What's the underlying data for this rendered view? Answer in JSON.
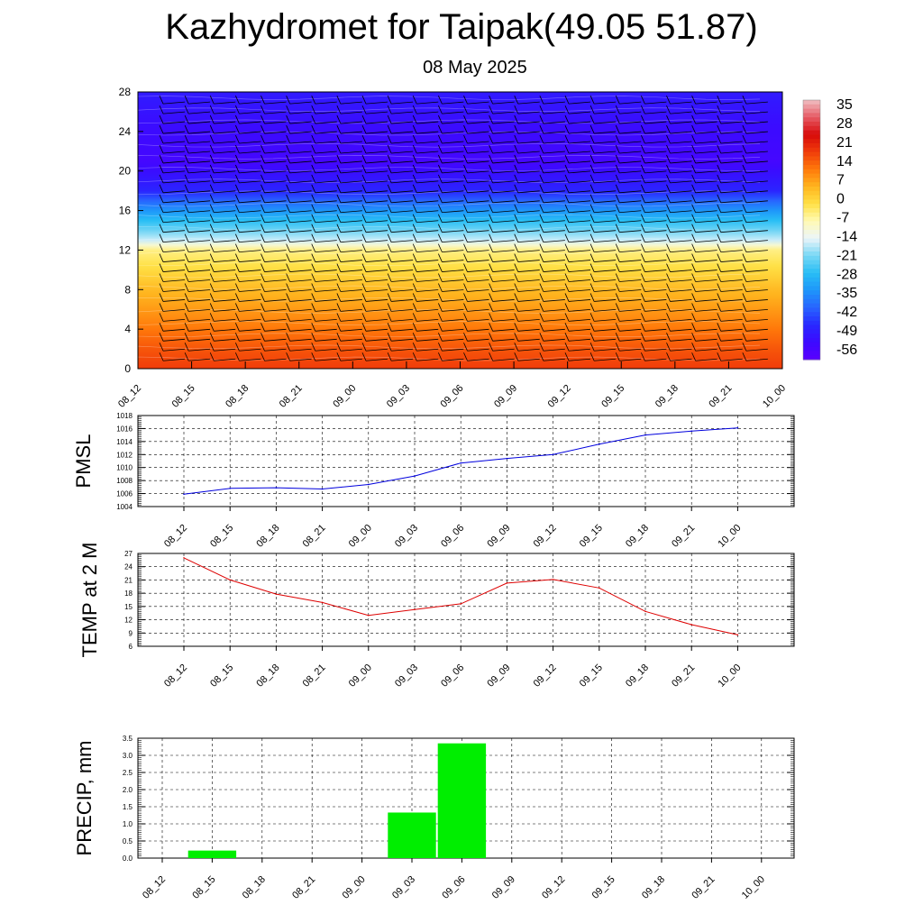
{
  "title": "Kazhydromet for Taipak(49.05 51.87)",
  "subtitle": "08 May 2025",
  "chart_data": [
    {
      "type": "heatmap",
      "description_source": "vertical cross-section: filled contours with wind barbs",
      "x_tick_labels": [
        "08_12",
        "08_15",
        "08_18",
        "08_21",
        "09_00",
        "09_03",
        "09_06",
        "09_09",
        "09_12",
        "09_15",
        "09_18",
        "09_21",
        "10_00"
      ],
      "y_tick_labels": [
        "0",
        "4",
        "8",
        "12",
        "16",
        "20",
        "24",
        "28"
      ],
      "ylim": [
        0,
        28
      ],
      "colorbar_labels": [
        "35",
        "28",
        "21",
        "14",
        "7",
        "0",
        "-7",
        "-14",
        "-21",
        "-28",
        "-35",
        "-42",
        "-49",
        "-56"
      ],
      "colorbar_range": [
        -63,
        42
      ],
      "vertical_profile": [
        {
          "level": 0,
          "value": 21
        },
        {
          "level": 2,
          "value": 18
        },
        {
          "level": 4,
          "value": 14
        },
        {
          "level": 6,
          "value": 10
        },
        {
          "level": 8,
          "value": 6
        },
        {
          "level": 10,
          "value": 1
        },
        {
          "level": 12,
          "value": -4
        },
        {
          "level": 13,
          "value": -16
        },
        {
          "level": 15,
          "value": -28
        },
        {
          "level": 17,
          "value": -42
        },
        {
          "level": 18,
          "value": -50
        },
        {
          "level": 21,
          "value": -58
        },
        {
          "level": 24,
          "value": -56
        },
        {
          "level": 28,
          "value": -52
        }
      ],
      "colors": {
        "low": "#5a00ff",
        "mid": "#ffffff",
        "high": "#d80000"
      }
    },
    {
      "type": "line",
      "ylabel": "PMSL",
      "categories": [
        "08_12",
        "08_15",
        "08_18",
        "08_21",
        "09_00",
        "09_03",
        "09_06",
        "09_09",
        "09_12",
        "09_15",
        "09_18",
        "09_21",
        "10_00"
      ],
      "y_tick_labels": [
        "1004",
        "1006",
        "1008",
        "1010",
        "1012",
        "1014",
        "1016",
        "1018"
      ],
      "ylim": [
        1004,
        1018
      ],
      "series": [
        {
          "values": [
            1005.9,
            1006.8,
            1006.9,
            1006.7,
            1007.4,
            1008.7,
            1010.7,
            1011.4,
            1012.0,
            1013.6,
            1015.0,
            1015.6,
            1016.1
          ],
          "color": "#0000dd"
        }
      ]
    },
    {
      "type": "line",
      "ylabel": "TEMP at 2 M",
      "categories": [
        "08_12",
        "08_15",
        "08_18",
        "08_21",
        "09_00",
        "09_03",
        "09_06",
        "09_09",
        "09_12",
        "09_15",
        "09_18",
        "09_21",
        "10_00"
      ],
      "y_tick_labels": [
        "6",
        "9",
        "12",
        "15",
        "18",
        "21",
        "24",
        "27"
      ],
      "ylim": [
        6,
        27
      ],
      "series": [
        {
          "values": [
            26.0,
            21.0,
            17.8,
            15.9,
            13.0,
            14.3,
            15.6,
            20.3,
            21.1,
            19.2,
            13.9,
            10.9,
            8.6
          ],
          "color": "#dd0000"
        }
      ]
    },
    {
      "type": "bar",
      "ylabel": "PRECIP, mm",
      "categories": [
        "08_12",
        "08_15",
        "08_18",
        "08_21",
        "09_00",
        "09_03",
        "09_06",
        "09_09",
        "09_12",
        "09_15",
        "09_18",
        "09_21",
        "10_00"
      ],
      "y_tick_labels": [
        "0.0",
        "0.5",
        "1.0",
        "1.5",
        "2.0",
        "2.5",
        "3.0",
        "3.5"
      ],
      "ylim": [
        0,
        3.5
      ],
      "values": [
        0,
        0.22,
        0,
        0,
        0,
        1.33,
        3.35,
        0,
        0,
        0,
        0,
        0,
        0
      ],
      "color": "#00ee00"
    }
  ]
}
